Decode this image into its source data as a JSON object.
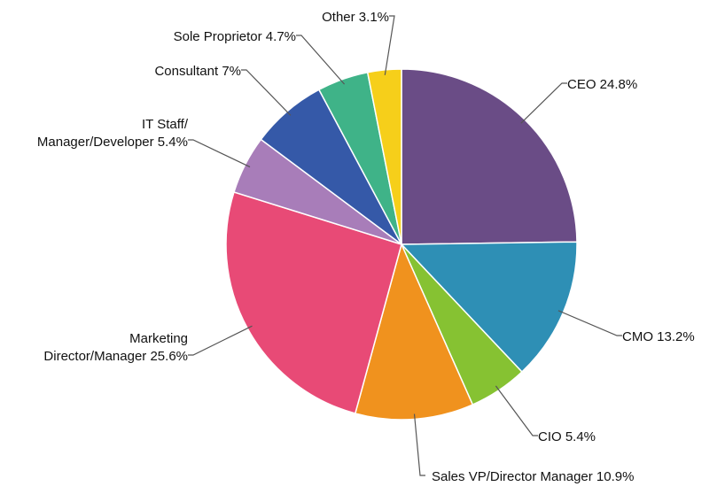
{
  "chart_data": {
    "type": "pie",
    "title": "",
    "start_angle_deg": 0,
    "direction": "clockwise",
    "slices": [
      {
        "label_lines": [
          "CEO 24.8%"
        ],
        "name": "CEO",
        "value": 24.8,
        "color": "#6A4C86"
      },
      {
        "label_lines": [
          "CMO 13.2%"
        ],
        "name": "CMO",
        "value": 13.2,
        "color": "#2E8FB5"
      },
      {
        "label_lines": [
          "CIO 5.4%"
        ],
        "name": "CIO",
        "value": 5.4,
        "color": "#86C232"
      },
      {
        "label_lines": [
          "Sales VP/Director Manager 10.9%"
        ],
        "name": "Sales VP/Director Manager",
        "value": 10.9,
        "color": "#F0921E"
      },
      {
        "label_lines": [
          "Marketing",
          "Director/Manager 25.6%"
        ],
        "name": "Marketing Director/Manager",
        "value": 25.6,
        "color": "#E84A76"
      },
      {
        "label_lines": [
          "IT Staff/",
          "Manager/Developer 5.4%"
        ],
        "name": "IT Staff/Manager/Developer",
        "value": 5.4,
        "color": "#A87DB9"
      },
      {
        "label_lines": [
          "Consultant 7%"
        ],
        "name": "Consultant",
        "value": 7.0,
        "color": "#3559A8"
      },
      {
        "label_lines": [
          "Sole Proprietor 4.7%"
        ],
        "name": "Sole Proprietor",
        "value": 4.7,
        "color": "#3FB388"
      },
      {
        "label_lines": [
          "Other 3.1%"
        ],
        "name": "Other",
        "value": 3.1,
        "color": "#F6CF1A"
      }
    ]
  }
}
